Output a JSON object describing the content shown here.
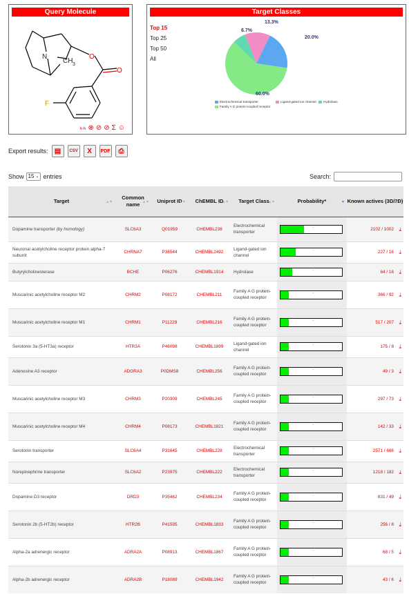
{
  "query_panel": {
    "title": "Query Molecule",
    "atom_labels": {
      "n": "N",
      "ch3": "CH",
      "sub3": "3",
      "o1": "O",
      "o2": "O",
      "f": "F"
    },
    "tools": [
      "ₕₕ",
      "⊗",
      "⊘",
      "⊘",
      "Σ",
      "☺"
    ]
  },
  "target_panel": {
    "title": "Target Classes",
    "options": [
      "Top 15",
      "Top 25",
      "Top 50",
      "All"
    ],
    "active_option": "Top 15",
    "pie_labels": [
      "13.3%",
      "20.0%",
      "6.7%",
      "60.0%"
    ],
    "legend": [
      "Electrochemical transporter",
      "Ligand-gated ion channel",
      "Hydrolase",
      "Family A G protein-coupled receptor"
    ],
    "colors": {
      "electro": "#5ba8f0",
      "ligand": "#f28cc4",
      "hydrolase": "#60d8b0",
      "gpcr": "#85e986"
    }
  },
  "chart_data": {
    "type": "pie",
    "categories": [
      "Electrochemical transporter",
      "Ligand-gated ion channel",
      "Hydrolase",
      "Family A G protein-coupled receptor"
    ],
    "values": [
      20.0,
      13.3,
      6.7,
      60.0
    ]
  },
  "export": {
    "label": "Export results:",
    "buttons": [
      "clipboard",
      "csv",
      "excel",
      "pdf",
      "print"
    ]
  },
  "show": {
    "prefix": "Show",
    "value": "15",
    "suffix": "entries"
  },
  "search": {
    "label": "Search:",
    "value": ""
  },
  "table": {
    "headers": [
      "Target",
      "Common name",
      "Uniprot ID",
      "ChEMBL ID",
      "Target Class",
      "Probability*",
      "Known actives (3D/2D)"
    ],
    "rows": [
      {
        "target": "Dopamine transporter",
        "note": "(by homology)",
        "common": "SLC6A3",
        "uniprot": "Q01959",
        "chembl": "CHEMBL238",
        "cls": "Electrochemical transporter",
        "prob": 0.38,
        "actives": "2102 / 1002",
        "h": 36
      },
      {
        "target": "Neuronal acetylcholine receptor protein alpha-7 subunit",
        "note": "",
        "common": "CHRNA7",
        "uniprot": "P36544",
        "chembl": "CHEMBL2492",
        "cls": "Ligand-gated ion channel",
        "prob": 0.25,
        "actives": "227 / 16",
        "h": 31
      },
      {
        "target": "Butyrylcholinesterase",
        "note": "",
        "common": "BCHE",
        "uniprot": "P06276",
        "chembl": "CHEMBL1914",
        "cls": "Hydrolase",
        "prob": 0.19,
        "actives": "64 / 16",
        "h": 26
      },
      {
        "target": "Muscarinic acetylcholine receptor M2",
        "note": "",
        "common": "CHRM2",
        "uniprot": "P08172",
        "chembl": "CHEMBL211",
        "cls": "Family A G protein-coupled receptor",
        "prob": 0.14,
        "actives": "366 / 92",
        "h": 40
      },
      {
        "target": "Muscarinic acetylcholine receptor M1",
        "note": "",
        "common": "CHRM1",
        "uniprot": "P11229",
        "chembl": "CHEMBL216",
        "cls": "Family A G protein-coupled receptor",
        "prob": 0.14,
        "actives": "517 / 207",
        "h": 40
      },
      {
        "target": "Serotonin 3a (5-HT3a) receptor",
        "note": "",
        "common": "HTR3A",
        "uniprot": "P46098",
        "chembl": "CHEMBL1899",
        "cls": "Ligand-gated ion channel",
        "prob": 0.14,
        "actives": "175 / 8",
        "h": 31
      },
      {
        "target": "Adenosine A3 receptor",
        "note": "",
        "common": "ADORA3",
        "uniprot": "P0DMS8",
        "chembl": "CHEMBL256",
        "cls": "Family A G protein-coupled receptor",
        "prob": 0.14,
        "actives": "49 / 3",
        "h": 40
      },
      {
        "target": "Muscarinic acetylcholine receptor M3",
        "note": "",
        "common": "CHRM3",
        "uniprot": "P20309",
        "chembl": "CHEMBL245",
        "cls": "Family A G protein-coupled receptor",
        "prob": 0.14,
        "actives": "297 / 73",
        "h": 40
      },
      {
        "target": "Muscarinic acetylcholine receptor M4",
        "note": "",
        "common": "CHRM4",
        "uniprot": "P08173",
        "chembl": "CHEMBL1821",
        "cls": "Family A G protein-coupled receptor",
        "prob": 0.14,
        "actives": "142 / 33",
        "h": 40
      },
      {
        "target": "Serotonin transporter",
        "note": "",
        "common": "SLC6A4",
        "uniprot": "P31645",
        "chembl": "CHEMBL228",
        "cls": "Electrochemical transporter",
        "prob": 0.14,
        "actives": "2571 / 666",
        "h": 31
      },
      {
        "target": "Norepinephrine transporter",
        "note": "",
        "common": "SLC6A2",
        "uniprot": "P23975",
        "chembl": "CHEMBL222",
        "cls": "Electrochemical transporter",
        "prob": 0.14,
        "actives": "1218 / 182",
        "h": 31
      },
      {
        "target": "Dopamine D3 receptor",
        "note": "",
        "common": "DRD3",
        "uniprot": "P35462",
        "chembl": "CHEMBL234",
        "cls": "Family A G protein-coupled receptor",
        "prob": 0.14,
        "actives": "831 / 49",
        "h": 40
      },
      {
        "target": "Serotonin 2b (5-HT2b) receptor",
        "note": "",
        "common": "HTR2B",
        "uniprot": "P41595",
        "chembl": "CHEMBL1833",
        "cls": "Family A G protein-coupled receptor",
        "prob": 0.14,
        "actives": "256 / 8",
        "h": 40
      },
      {
        "target": "Alpha-2a adrenergic receptor",
        "note": "",
        "common": "ADRA2A",
        "uniprot": "P08913",
        "chembl": "CHEMBL1867",
        "cls": "Family A G protein-coupled receptor",
        "prob": 0.14,
        "actives": "68 / 5",
        "h": 40
      },
      {
        "target": "Alpha-2b adrenergic receptor",
        "note": "",
        "common": "ADRA2B",
        "uniprot": "P18089",
        "chembl": "CHEMBL1942",
        "cls": "Family A G protein-coupled receptor",
        "prob": 0.14,
        "actives": "43 / 6",
        "h": 40
      }
    ]
  }
}
